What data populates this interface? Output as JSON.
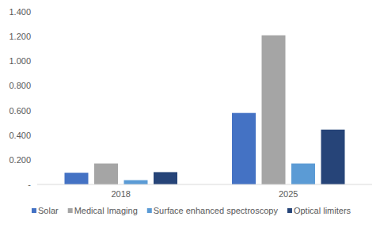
{
  "chart_data": {
    "type": "bar",
    "categories": [
      "2018",
      "2025"
    ],
    "series": [
      {
        "name": "Solar",
        "color": "#4472c4",
        "values": [
          0.095,
          0.58
        ]
      },
      {
        "name": "Medical Imaging",
        "color": "#a5a5a5",
        "values": [
          0.17,
          1.21
        ]
      },
      {
        "name": "Surface enhanced spectroscopy",
        "color": "#5b9bd5",
        "values": [
          0.035,
          0.17
        ]
      },
      {
        "name": "Optical limiters",
        "color": "#264478",
        "values": [
          0.1,
          0.445
        ]
      }
    ],
    "ylim": [
      0,
      1.4
    ],
    "yticks": [
      {
        "value": 0,
        "label": "-"
      },
      {
        "value": 0.2,
        "label": "0.200"
      },
      {
        "value": 0.4,
        "label": "0.400"
      },
      {
        "value": 0.6,
        "label": "0.600"
      },
      {
        "value": 0.8,
        "label": "0.800"
      },
      {
        "value": 1.0,
        "label": "1.000"
      },
      {
        "value": 1.2,
        "label": "1.200"
      },
      {
        "value": 1.4,
        "label": "1.400"
      }
    ],
    "grid": false,
    "legend": "bottom"
  }
}
